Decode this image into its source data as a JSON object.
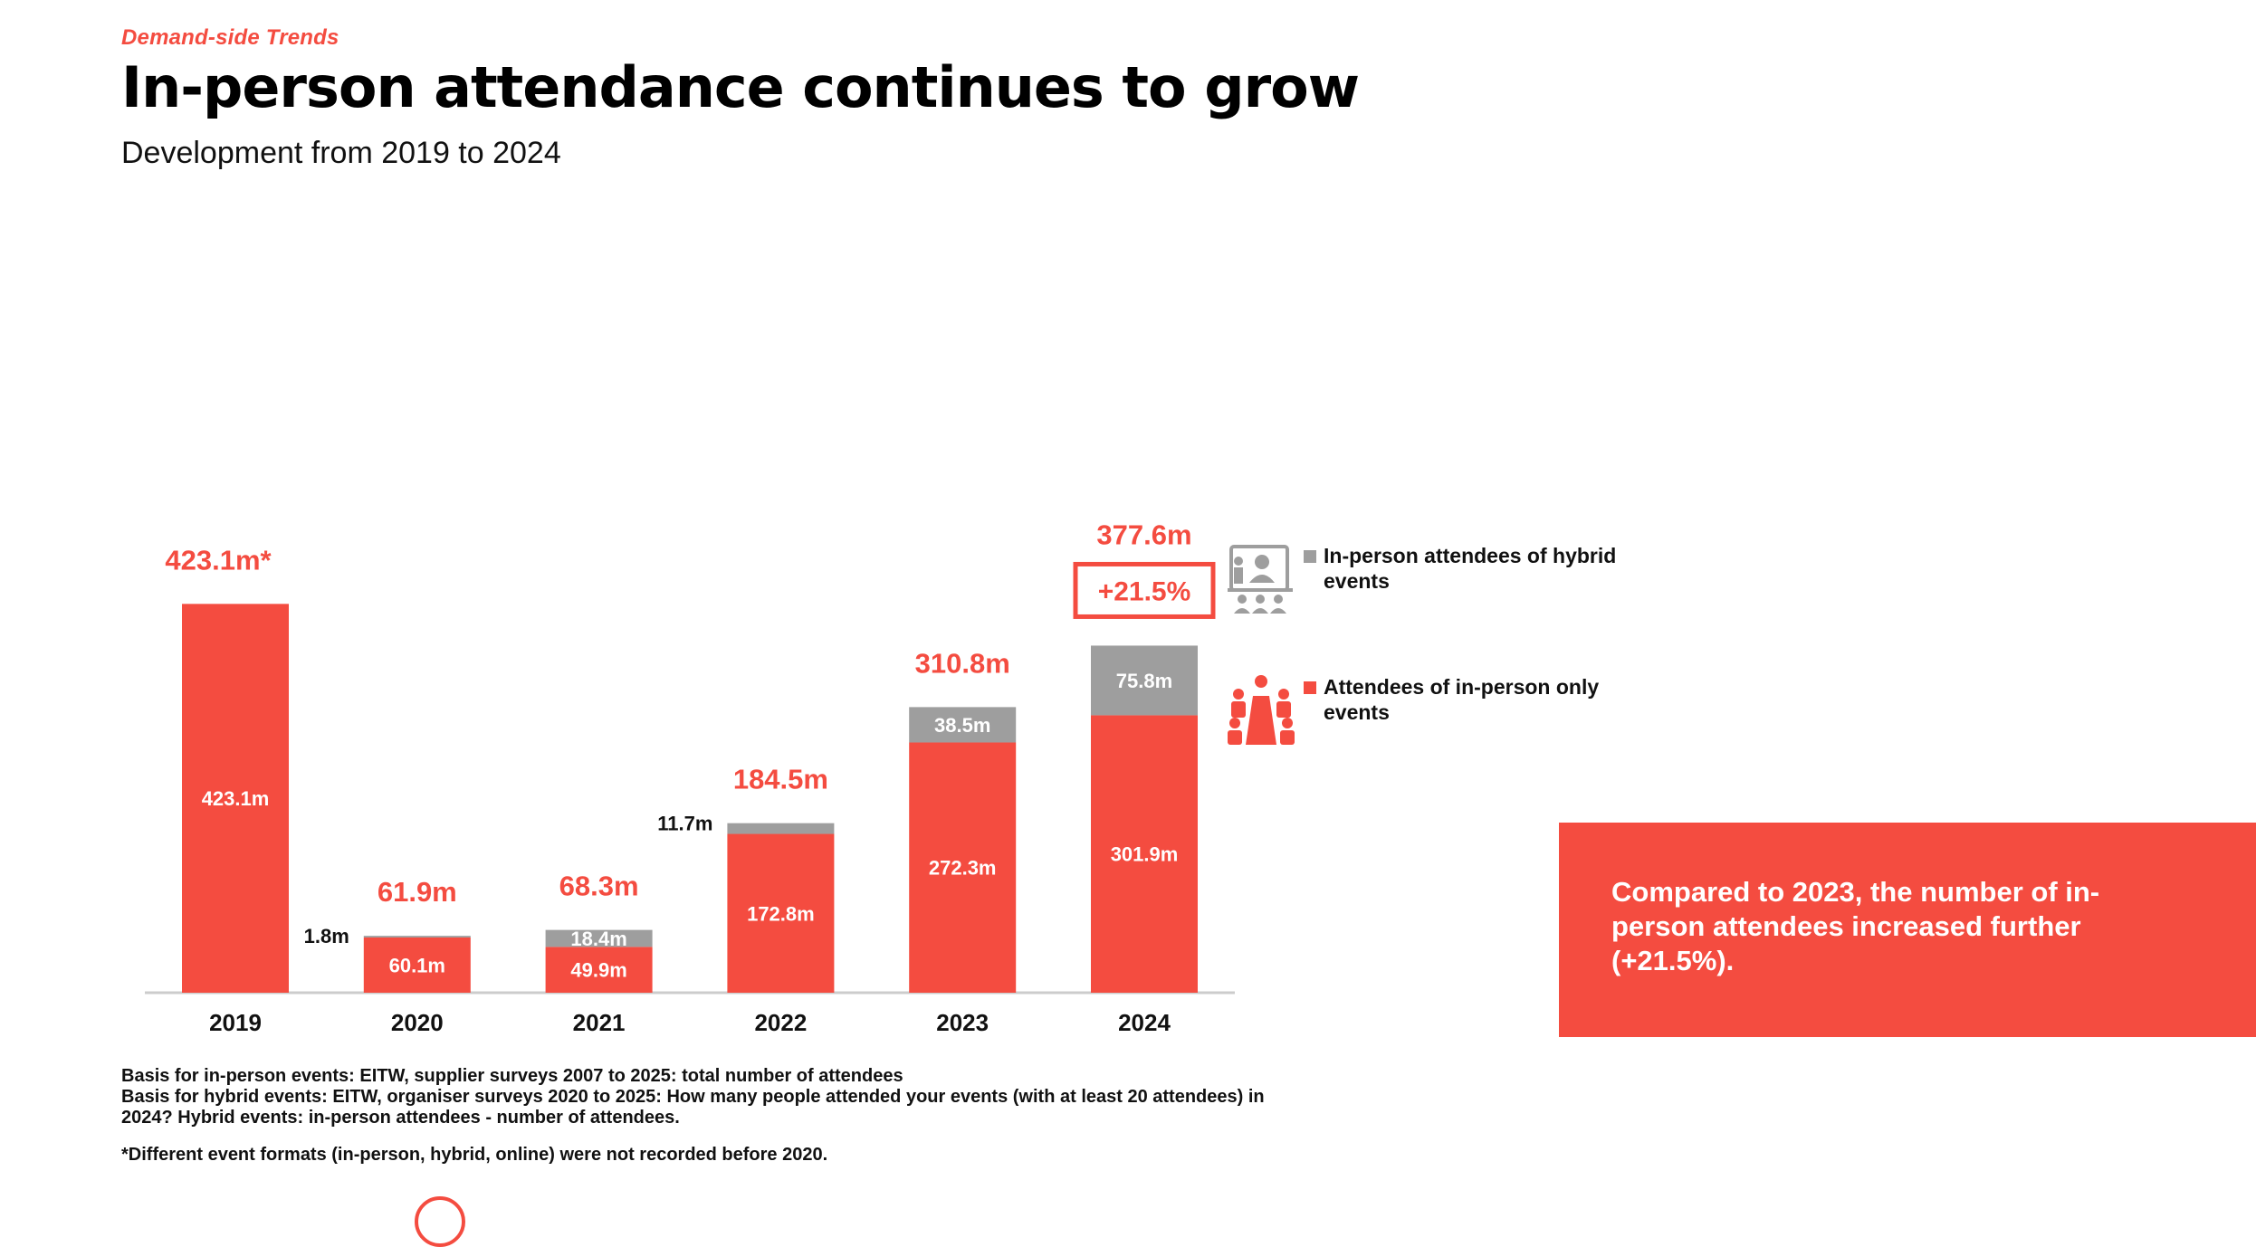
{
  "header": {
    "kicker": "Demand-side Trends",
    "title": "In-person attendance continues to grow",
    "subtitle": "Development from 2019 to 2024"
  },
  "colors": {
    "accent": "#f44c40",
    "hybrid": "#9e9e9e",
    "axis": "#cccccc"
  },
  "chart_data": {
    "type": "bar",
    "stacked": true,
    "categories": [
      "2019",
      "2020",
      "2021",
      "2022",
      "2023",
      "2024"
    ],
    "series": [
      {
        "name": "Attendees of in-person only events",
        "values": [
          423.1,
          60.1,
          49.9,
          172.8,
          272.3,
          301.9
        ],
        "labels": [
          "423.1m",
          "60.1m",
          "49.9m",
          "172.8m",
          "272.3m",
          "301.9m"
        ]
      },
      {
        "name": "In-person attendees of hybrid events",
        "values": [
          0,
          1.8,
          18.4,
          11.7,
          38.5,
          75.8
        ],
        "labels": [
          "",
          "1.8m",
          "18.4m",
          "11.7m",
          "38.5m",
          "75.8m"
        ]
      }
    ],
    "totals": [
      423.1,
      61.9,
      68.3,
      184.5,
      310.8,
      377.6
    ],
    "total_labels": [
      "423.1m*",
      "61.9m",
      "68.3m",
      "184.5m",
      "310.8m",
      "377.6m"
    ],
    "highlight": {
      "category": "2024",
      "text": "+21.5%"
    },
    "ylim": [
      0,
      440
    ],
    "grid": false,
    "legend_position": "right"
  },
  "legend": {
    "hybrid": {
      "icon": "hybrid-event-icon",
      "label": "In-person attendees of hybrid events"
    },
    "inperson": {
      "icon": "in-person-event-icon",
      "label": "Attendees of in-person only events"
    }
  },
  "callout": {
    "text": "Compared to 2023, the number of in-person attendees increased further (+21.5%)."
  },
  "footnotes": {
    "line1": "Basis for in-person events: EITW, supplier surveys 2007 to 2025: total number of attendees",
    "line2": "Basis for hybrid events: EITW, organiser surveys 2020 to 2025: How many people attended your events (with at least 20 attendees) in 2024? Hybrid events: in-person attendees - number of attendees.",
    "line3": "*Different event formats (in-person, hybrid, online) were not recorded before 2020."
  }
}
